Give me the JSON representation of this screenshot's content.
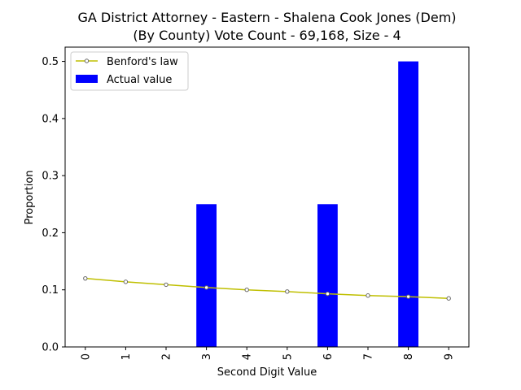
{
  "chart_data": {
    "type": "bar",
    "title_line1": "GA District Attorney - Eastern - Shalena Cook Jones (Dem)",
    "title_line2": "(By County) Vote Count - 69,168, Size - 4",
    "xlabel": "Second Digit Value",
    "ylabel": "Proportion",
    "categories": [
      "0",
      "1",
      "2",
      "3",
      "4",
      "5",
      "6",
      "7",
      "8",
      "9"
    ],
    "yticks": [
      "0.0",
      "0.1",
      "0.2",
      "0.3",
      "0.4",
      "0.5"
    ],
    "ylim": [
      0,
      0.525
    ],
    "series": [
      {
        "name": "Actual value",
        "kind": "bar",
        "color": "#0000ff",
        "values": [
          0,
          0,
          0,
          0.25,
          0,
          0,
          0.25,
          0,
          0.5,
          0
        ]
      },
      {
        "name": "Benford's law",
        "kind": "line",
        "color": "#bfbf00",
        "values": [
          0.12,
          0.114,
          0.109,
          0.104,
          0.1,
          0.097,
          0.093,
          0.09,
          0.088,
          0.085
        ]
      }
    ],
    "legend": [
      "Benford's law",
      "Actual value"
    ],
    "legend_position": "top-left",
    "grid": false
  }
}
